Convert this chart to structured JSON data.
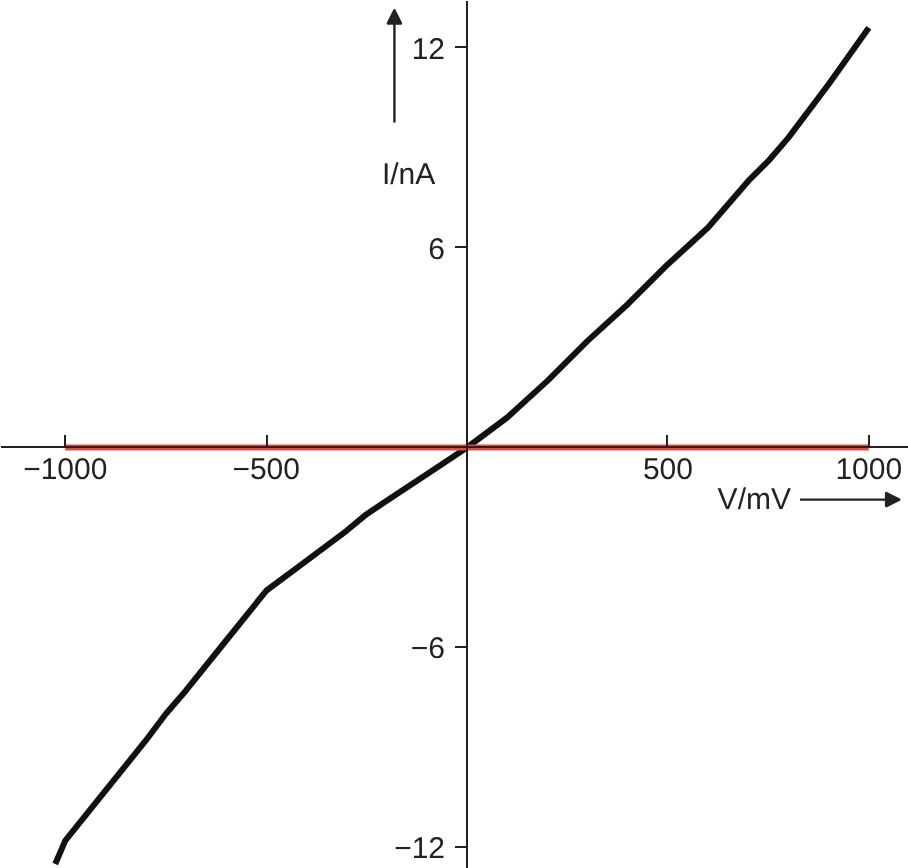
{
  "chart_data": {
    "type": "line",
    "xlabel": "V/mV",
    "ylabel": "I/nA",
    "xlim": [
      -1160,
      1100
    ],
    "ylim": [
      -12.65,
      13.4
    ],
    "xticks": [
      -1000,
      -500,
      500,
      1000
    ],
    "yticks": [
      -12,
      -6,
      6,
      12
    ],
    "grid": false,
    "series": [
      {
        "color": "#111111",
        "x": [
          -1025,
          -1000,
          -900,
          -800,
          -750,
          -700,
          -600,
          -500,
          -400,
          -300,
          -250,
          -200,
          -100,
          0,
          100,
          200,
          250,
          300,
          400,
          500,
          600,
          700,
          750,
          800,
          900,
          1000
        ],
        "values": [
          -12.5,
          -11.8,
          -10.3,
          -8.8,
          -8.0,
          -7.3,
          -5.8,
          -4.3,
          -3.4,
          -2.5,
          -2.0,
          -1.6,
          -0.8,
          0,
          0.9,
          2.0,
          2.6,
          3.2,
          4.3,
          5.5,
          6.6,
          8.0,
          8.6,
          9.3,
          10.9,
          12.6
        ]
      },
      {
        "color": "#e8483a",
        "x": [
          -1000,
          1000
        ],
        "values": [
          0,
          0
        ]
      }
    ]
  }
}
